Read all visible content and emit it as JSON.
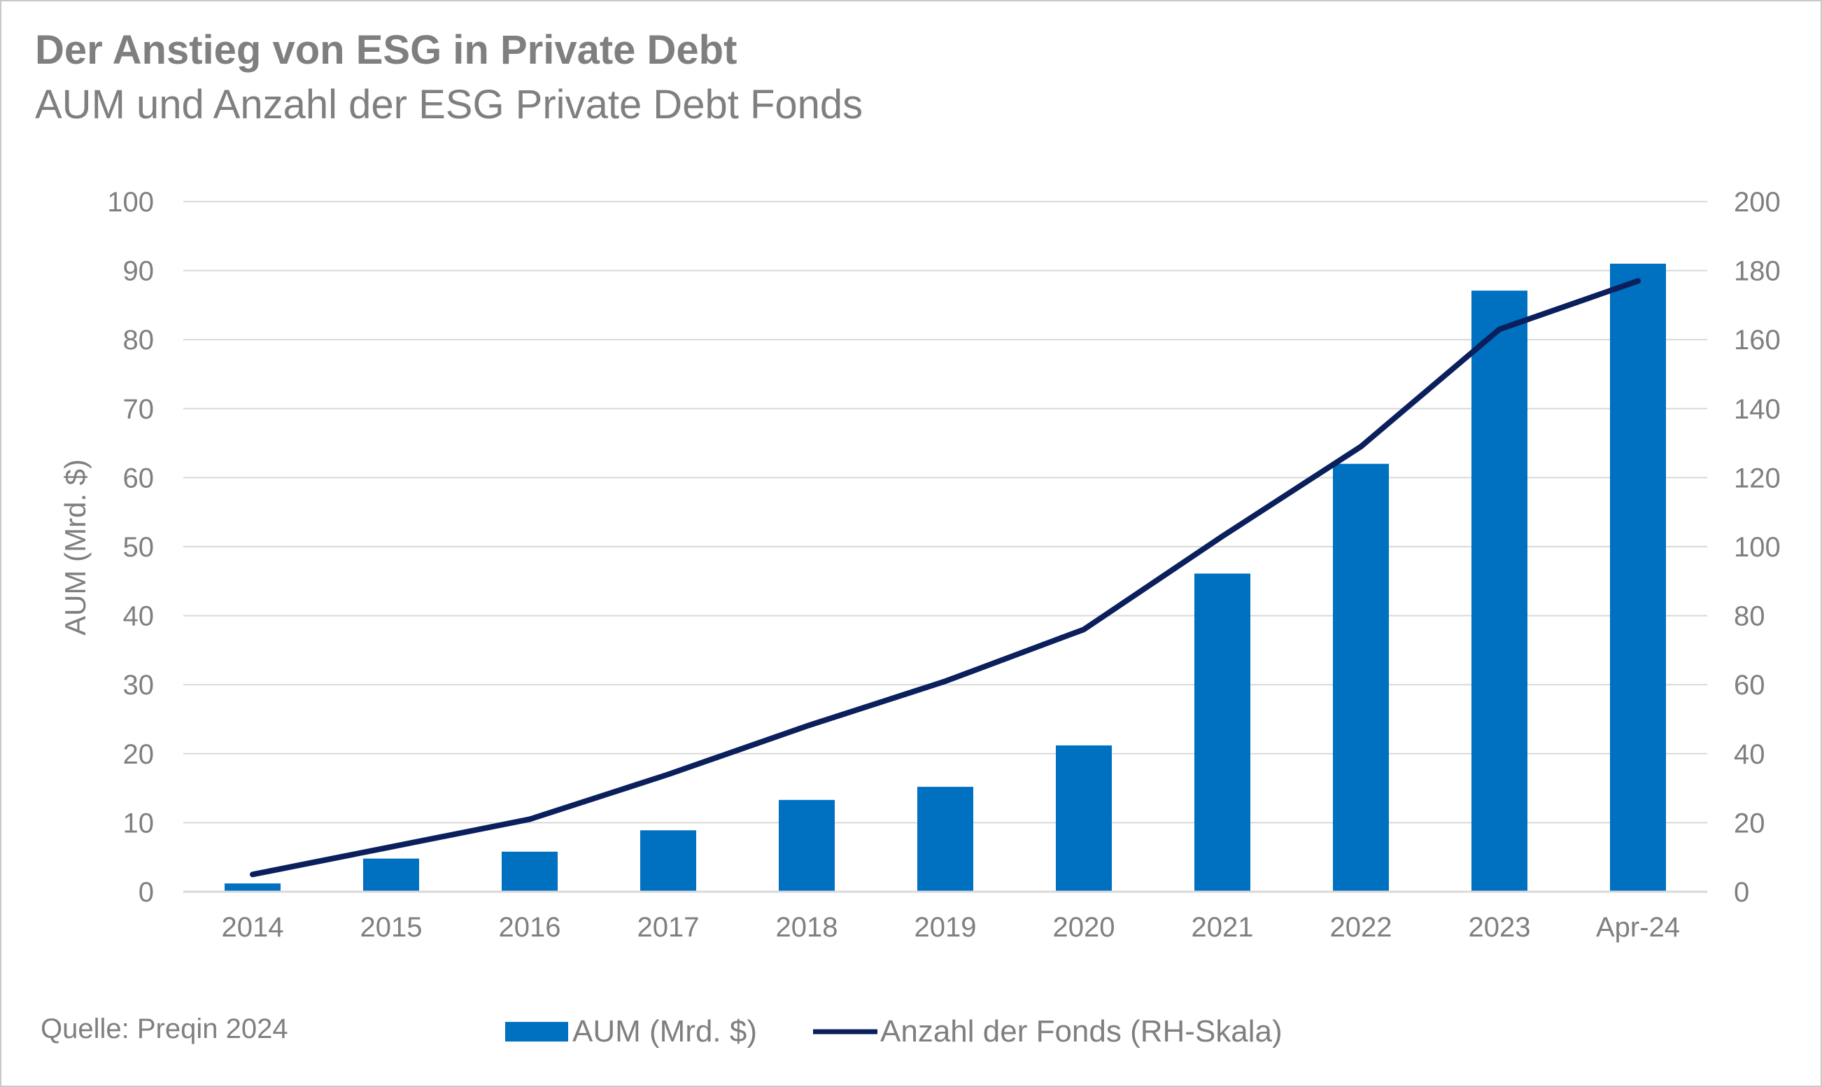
{
  "header": {
    "title": "Der Anstieg von ESG in Private Debt",
    "subtitle": "AUM und Anzahl der ESG Private Debt Fonds"
  },
  "footer": {
    "source": "Quelle: Preqin 2024"
  },
  "colors": {
    "bar": "#0070c0",
    "line": "#0a1f5c",
    "grid": "#d9d9d9",
    "text": "#7f7f7f"
  },
  "chart_data": {
    "type": "bar",
    "categories": [
      "2014",
      "2015",
      "2016",
      "2017",
      "2018",
      "2019",
      "2020",
      "2021",
      "2022",
      "2023",
      "Apr-24"
    ],
    "series": [
      {
        "name": "AUM (Mrd. $)",
        "type": "bar",
        "axis": "left",
        "values": [
          1.2,
          4.8,
          5.8,
          8.9,
          13.3,
          15.2,
          21.2,
          46.1,
          62.0,
          87.1,
          91.0
        ]
      },
      {
        "name": "Anzahl der Fonds (RH-Skala)",
        "type": "line",
        "axis": "right",
        "values": [
          5,
          13,
          21,
          34,
          48,
          61,
          76,
          103,
          129,
          163,
          177
        ]
      }
    ],
    "ylabel": "AUM (Mrd. $)",
    "ylim": [
      0,
      100
    ],
    "yticks": [
      "0",
      "10",
      "20",
      "30",
      "40",
      "50",
      "60",
      "70",
      "80",
      "90",
      "100"
    ],
    "y2lim": [
      0,
      200
    ],
    "y2ticks": [
      "0",
      "20",
      "40",
      "60",
      "80",
      "100",
      "120",
      "140",
      "160",
      "180",
      "200"
    ],
    "grid": true,
    "legend_position": "bottom"
  }
}
